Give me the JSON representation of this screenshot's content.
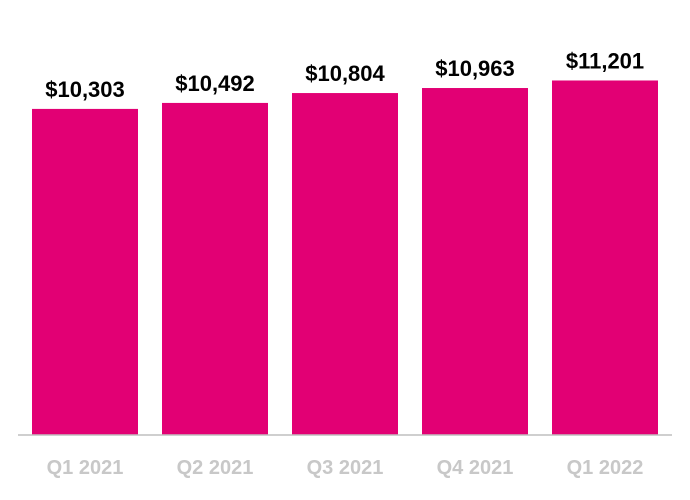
{
  "chart_data": {
    "type": "bar",
    "title": "",
    "xlabel": "",
    "ylabel": "",
    "categories": [
      "Q1 2021",
      "Q2 2021",
      "Q3 2021",
      "Q4 2021",
      "Q1 2022"
    ],
    "values": [
      10303,
      10492,
      10804,
      10963,
      11201
    ],
    "value_labels": [
      "$10,303",
      "$10,492",
      "$10,804",
      "$10,963",
      "$11,201"
    ],
    "ylim": [
      0,
      12000
    ],
    "grid": false,
    "legend": "none",
    "bar_color": "#e20074",
    "tick_label_color": "#c8c8c8",
    "value_label_color": "#000000"
  }
}
